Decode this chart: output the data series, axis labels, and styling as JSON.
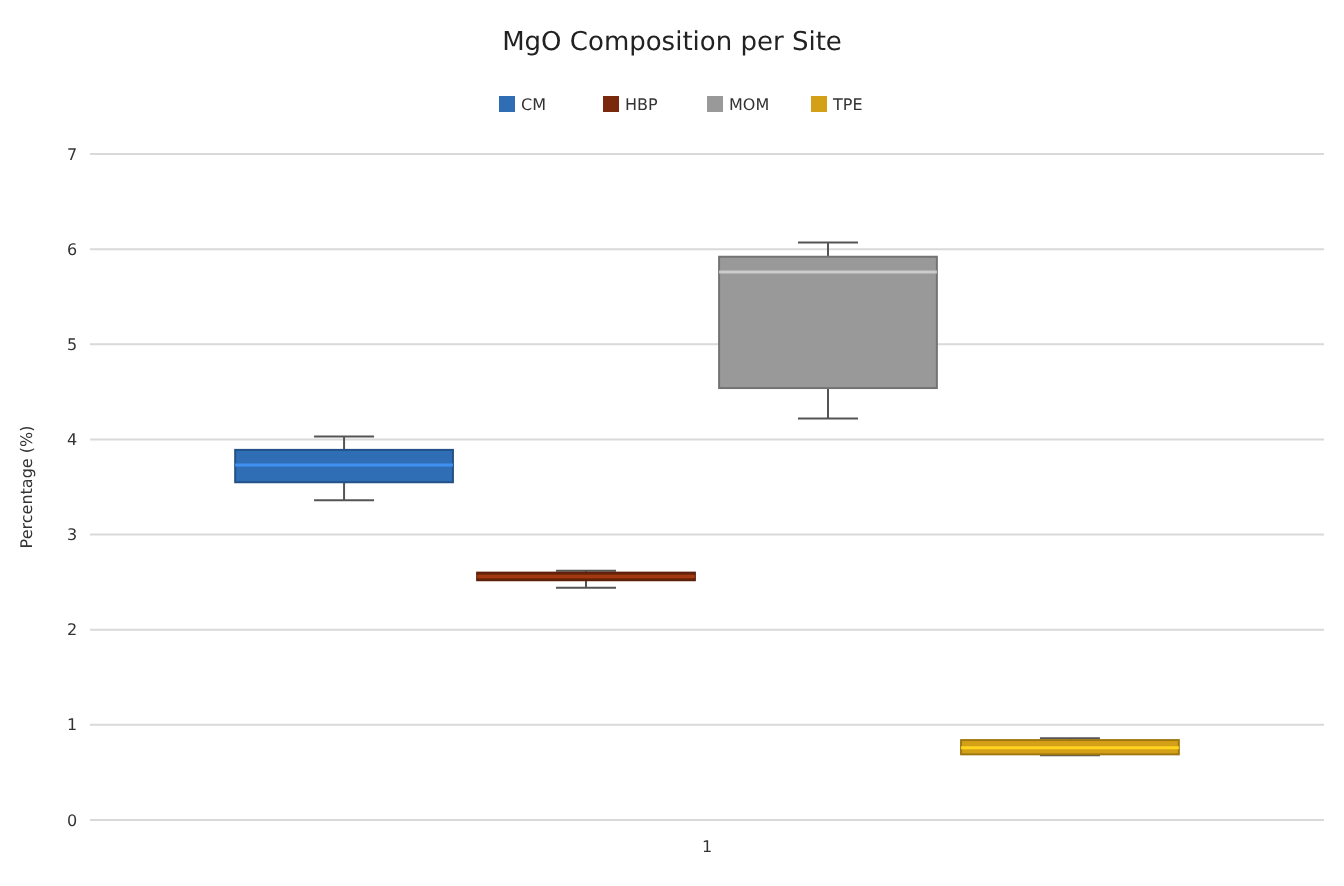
{
  "chart_data": {
    "type": "box",
    "title": "MgO Composition per Site",
    "ylabel": "Percentage (%)",
    "categories": [
      "1"
    ],
    "series": [
      {
        "name": "CM",
        "color": "#2f6db5",
        "boxes": [
          {
            "low": 3.36,
            "q1": 3.55,
            "median": 3.73,
            "q3": 3.89,
            "high": 4.03
          }
        ]
      },
      {
        "name": "HBP",
        "color": "#7a2a0c",
        "boxes": [
          {
            "low": 2.44,
            "q1": 2.52,
            "median": 2.56,
            "q3": 2.6,
            "high": 2.62
          }
        ]
      },
      {
        "name": "MOM",
        "color": "#999999",
        "boxes": [
          {
            "low": 4.22,
            "q1": 4.54,
            "median": 5.76,
            "q3": 5.92,
            "high": 6.07
          }
        ]
      },
      {
        "name": "TPE",
        "color": "#d4a017",
        "boxes": [
          {
            "low": 0.68,
            "q1": 0.69,
            "median": 0.76,
            "q3": 0.84,
            "high": 0.86
          }
        ]
      }
    ],
    "ylim": [
      0,
      7
    ],
    "yticks": [
      0,
      1,
      2,
      3,
      4,
      5,
      6,
      7
    ],
    "grid": "y",
    "legend": "top"
  }
}
